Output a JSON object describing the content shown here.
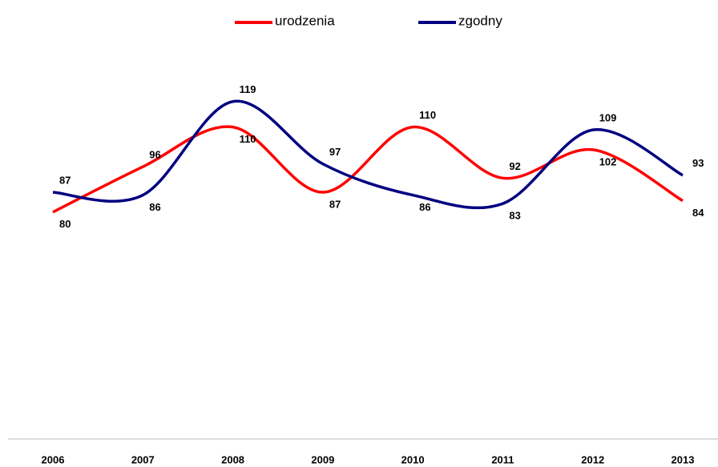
{
  "chart_data": {
    "type": "line",
    "categories": [
      "2006",
      "2007",
      "2008",
      "2009",
      "2010",
      "2011",
      "2012",
      "2013"
    ],
    "series": [
      {
        "name": "urodzenia",
        "color": "#ff0000",
        "values": [
          80,
          96,
          110,
          87,
          110,
          92,
          102,
          84
        ]
      },
      {
        "name": "zgodny",
        "color": "#000080",
        "values": [
          87,
          86,
          119,
          97,
          86,
          83,
          109,
          93
        ]
      }
    ],
    "ylim": [
      0,
      125
    ],
    "legend": "top",
    "smooth": true
  }
}
